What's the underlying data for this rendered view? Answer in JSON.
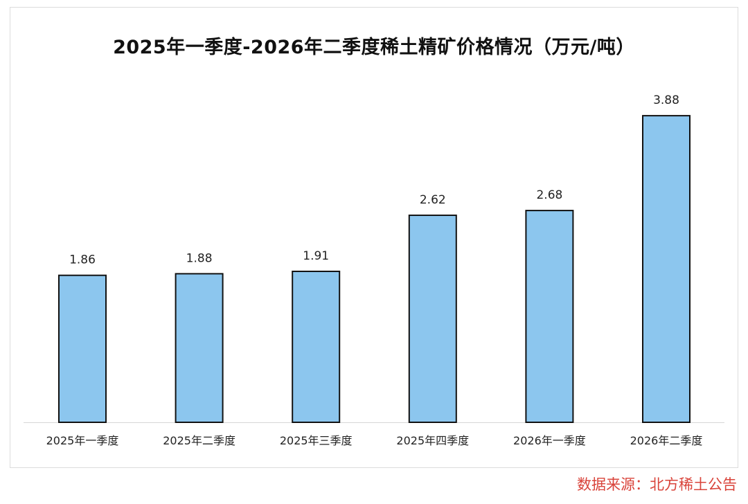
{
  "chart_data": {
    "type": "bar",
    "title": "2025年一季度-2026年二季度稀土精矿价格情况（万元/吨）",
    "categories": [
      "2025年一季度",
      "2025年二季度",
      "2025年三季度",
      "2025年四季度",
      "2026年一季度",
      "2026年二季度"
    ],
    "values": [
      1.86,
      1.88,
      1.91,
      2.62,
      2.68,
      3.88
    ],
    "value_labels": [
      "1.86",
      "1.88",
      "1.91",
      "2.62",
      "2.68",
      "3.88"
    ],
    "xlabel": "",
    "ylabel": "",
    "ylim": [
      0,
      4.1
    ],
    "grid": false,
    "bar_color": "#8cc6ee",
    "bar_edge_color": "#111111"
  },
  "source_note": "数据来源：北方稀土公告"
}
